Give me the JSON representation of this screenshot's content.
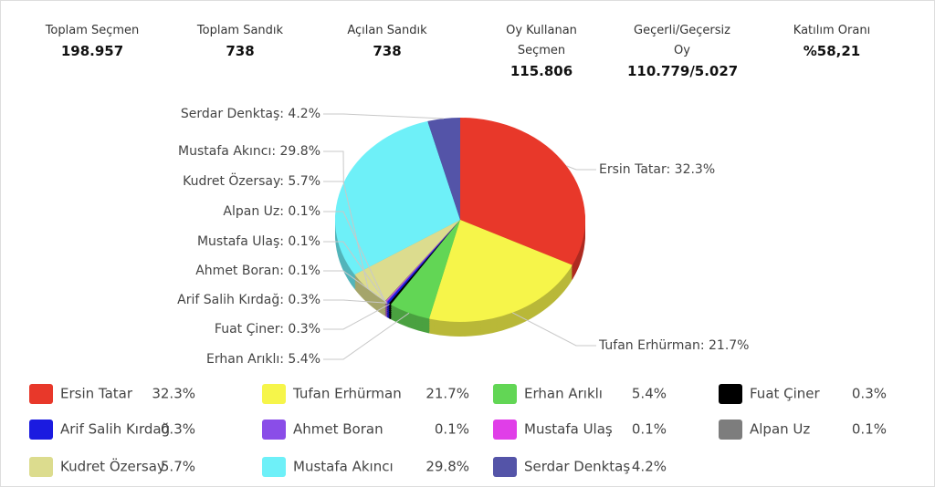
{
  "stats": [
    {
      "label": "Toplam Seçmen",
      "value": "198.957"
    },
    {
      "label": "Toplam Sandık",
      "value": "738"
    },
    {
      "label": "Açılan Sandık",
      "value": "738"
    },
    {
      "label": "Oy Kullanan Seçmen",
      "value": "115.806"
    },
    {
      "label": "Geçerli/Geçersiz Oy",
      "value": "110.779/5.027"
    },
    {
      "label": "Katılım Oranı",
      "value": "%58,21"
    }
  ],
  "chart_data": {
    "type": "pie",
    "categories": [
      "Ersin Tatar",
      "Tufan Erhürman",
      "Erhan Arıklı",
      "Fuat Çiner",
      "Arif Salih Kırdağ",
      "Ahmet Boran",
      "Mustafa Ulaş",
      "Alpan Uz",
      "Kudret Özersay",
      "Mustafa Akıncı",
      "Serdar Denktaş"
    ],
    "values": [
      32.3,
      21.7,
      5.4,
      0.3,
      0.3,
      0.1,
      0.1,
      0.1,
      5.7,
      29.8,
      4.2
    ],
    "value_labels": [
      "32.3%",
      "21.7%",
      "5.4%",
      "0.3%",
      "0.3%",
      "0.1%",
      "0.1%",
      "0.1%",
      "5.7%",
      "29.8%",
      "4.2%"
    ],
    "data_labels": [
      "Ersin Tatar: 32.3%",
      "Tufan Erhürman: 21.7%",
      "Erhan Arıklı: 5.4%",
      "Fuat Çiner: 0.3%",
      "Arif Salih Kırdağ: 0.3%",
      "Ahmet Boran: 0.1%",
      "Mustafa Ulaş: 0.1%",
      "Alpan Uz: 0.1%",
      "Kudret Özersay: 5.7%",
      "Mustafa Akıncı: 29.8%",
      "Serdar Denktaş: 4.2%"
    ],
    "colors": [
      "#e8382a",
      "#f6f54a",
      "#62d655",
      "#000000",
      "#1b1be0",
      "#8a4de8",
      "#e03ee8",
      "#7d7d7d",
      "#dcdc8e",
      "#6ef0f8",
      "#5454a8"
    ]
  }
}
